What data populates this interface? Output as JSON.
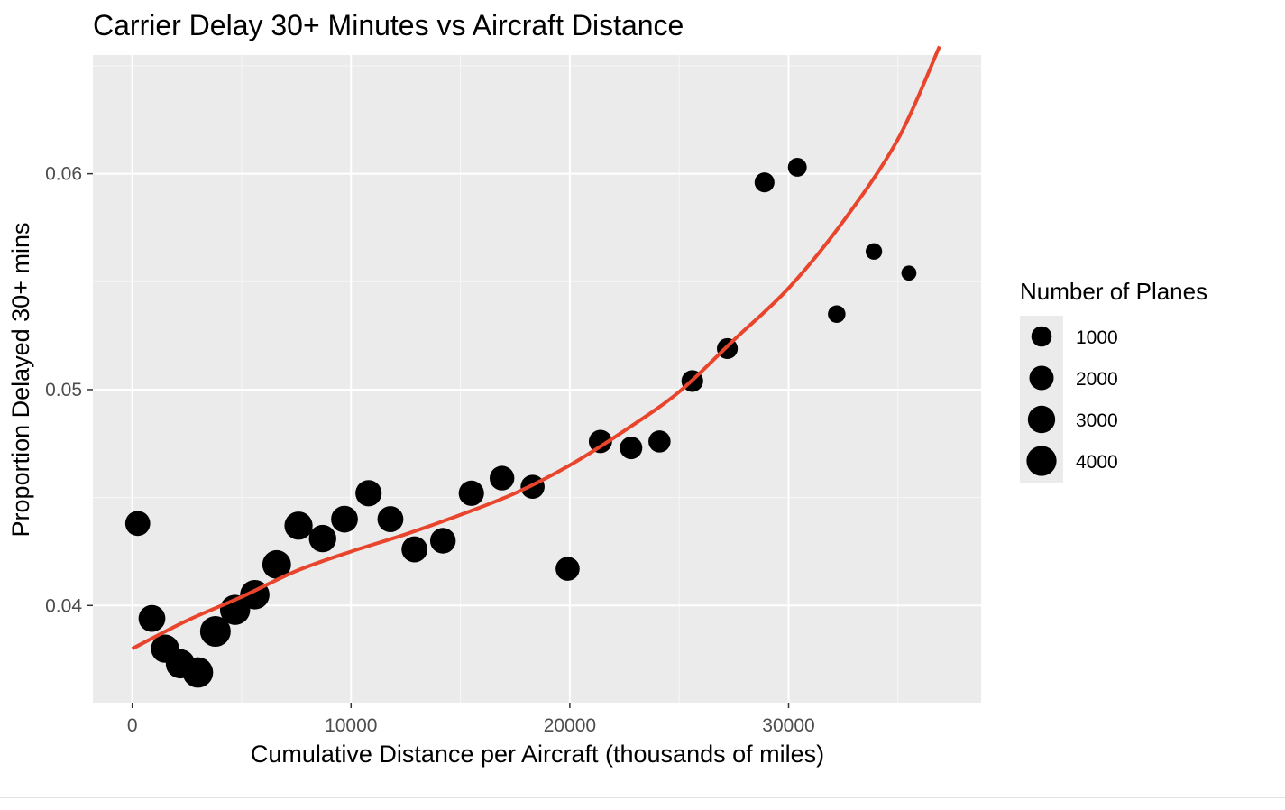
{
  "chart_data": {
    "type": "scatter",
    "title": "Carrier Delay 30+ Minutes vs Aircraft Distance",
    "xlabel": "Cumulative Distance per Aircraft (thousands of miles)",
    "ylabel": "Proportion Delayed 30+ mins",
    "xlim": [
      -1800,
      38800
    ],
    "ylim": [
      0.0355,
      0.0655
    ],
    "x_ticks": [
      0,
      10000,
      20000,
      30000
    ],
    "x_tick_labels": [
      "0",
      "10000",
      "20000",
      "30000"
    ],
    "y_ticks": [
      0.04,
      0.05,
      0.06
    ],
    "y_tick_labels": [
      "0.04",
      "0.05",
      "0.06"
    ],
    "grid": true,
    "legend": {
      "title": "Number of Planes",
      "position": "right",
      "entries": [
        {
          "label": "1000",
          "size": 1000
        },
        {
          "label": "2000",
          "size": 2000
        },
        {
          "label": "3000",
          "size": 3000
        },
        {
          "label": "4000",
          "size": 4000
        }
      ]
    },
    "points_series": {
      "name": "",
      "color": "#000000",
      "points": [
        {
          "x": 250,
          "y": 0.0438,
          "size": 2200
        },
        {
          "x": 900,
          "y": 0.0394,
          "size": 2800
        },
        {
          "x": 1500,
          "y": 0.038,
          "size": 3300
        },
        {
          "x": 2200,
          "y": 0.0373,
          "size": 3700
        },
        {
          "x": 3000,
          "y": 0.0369,
          "size": 4200
        },
        {
          "x": 3800,
          "y": 0.0388,
          "size": 4300
        },
        {
          "x": 4700,
          "y": 0.0398,
          "size": 4100
        },
        {
          "x": 5600,
          "y": 0.0405,
          "size": 3800
        },
        {
          "x": 6600,
          "y": 0.0419,
          "size": 3500
        },
        {
          "x": 7600,
          "y": 0.0437,
          "size": 3300
        },
        {
          "x": 8700,
          "y": 0.0431,
          "size": 3000
        },
        {
          "x": 9700,
          "y": 0.044,
          "size": 2800
        },
        {
          "x": 10800,
          "y": 0.0452,
          "size": 2600
        },
        {
          "x": 11800,
          "y": 0.044,
          "size": 2500
        },
        {
          "x": 12900,
          "y": 0.0426,
          "size": 2500
        },
        {
          "x": 14200,
          "y": 0.043,
          "size": 2400
        },
        {
          "x": 15500,
          "y": 0.0452,
          "size": 2300
        },
        {
          "x": 16900,
          "y": 0.0459,
          "size": 2100
        },
        {
          "x": 18300,
          "y": 0.0455,
          "size": 1900
        },
        {
          "x": 19900,
          "y": 0.0417,
          "size": 1900
        },
        {
          "x": 21400,
          "y": 0.0476,
          "size": 1700
        },
        {
          "x": 22800,
          "y": 0.0473,
          "size": 1500
        },
        {
          "x": 24100,
          "y": 0.0476,
          "size": 1400
        },
        {
          "x": 25600,
          "y": 0.0504,
          "size": 1300
        },
        {
          "x": 27200,
          "y": 0.0519,
          "size": 1100
        },
        {
          "x": 28900,
          "y": 0.0596,
          "size": 900
        },
        {
          "x": 30400,
          "y": 0.0603,
          "size": 700
        },
        {
          "x": 32200,
          "y": 0.0535,
          "size": 500
        },
        {
          "x": 33900,
          "y": 0.0564,
          "size": 350
        },
        {
          "x": 35500,
          "y": 0.0554,
          "size": 200
        }
      ]
    },
    "smooth_series": {
      "name": "",
      "color": "#E8452C",
      "points": [
        {
          "x": 0,
          "y": 0.038
        },
        {
          "x": 2500,
          "y": 0.0393
        },
        {
          "x": 5000,
          "y": 0.0404
        },
        {
          "x": 7500,
          "y": 0.0416
        },
        {
          "x": 10000,
          "y": 0.0425
        },
        {
          "x": 12500,
          "y": 0.0433
        },
        {
          "x": 15000,
          "y": 0.0442
        },
        {
          "x": 17500,
          "y": 0.0452
        },
        {
          "x": 20000,
          "y": 0.0465
        },
        {
          "x": 22500,
          "y": 0.0481
        },
        {
          "x": 25000,
          "y": 0.0499
        },
        {
          "x": 27500,
          "y": 0.0523
        },
        {
          "x": 30000,
          "y": 0.0547
        },
        {
          "x": 32500,
          "y": 0.0578
        },
        {
          "x": 35000,
          "y": 0.0616
        },
        {
          "x": 36900,
          "y": 0.0659
        }
      ]
    }
  }
}
